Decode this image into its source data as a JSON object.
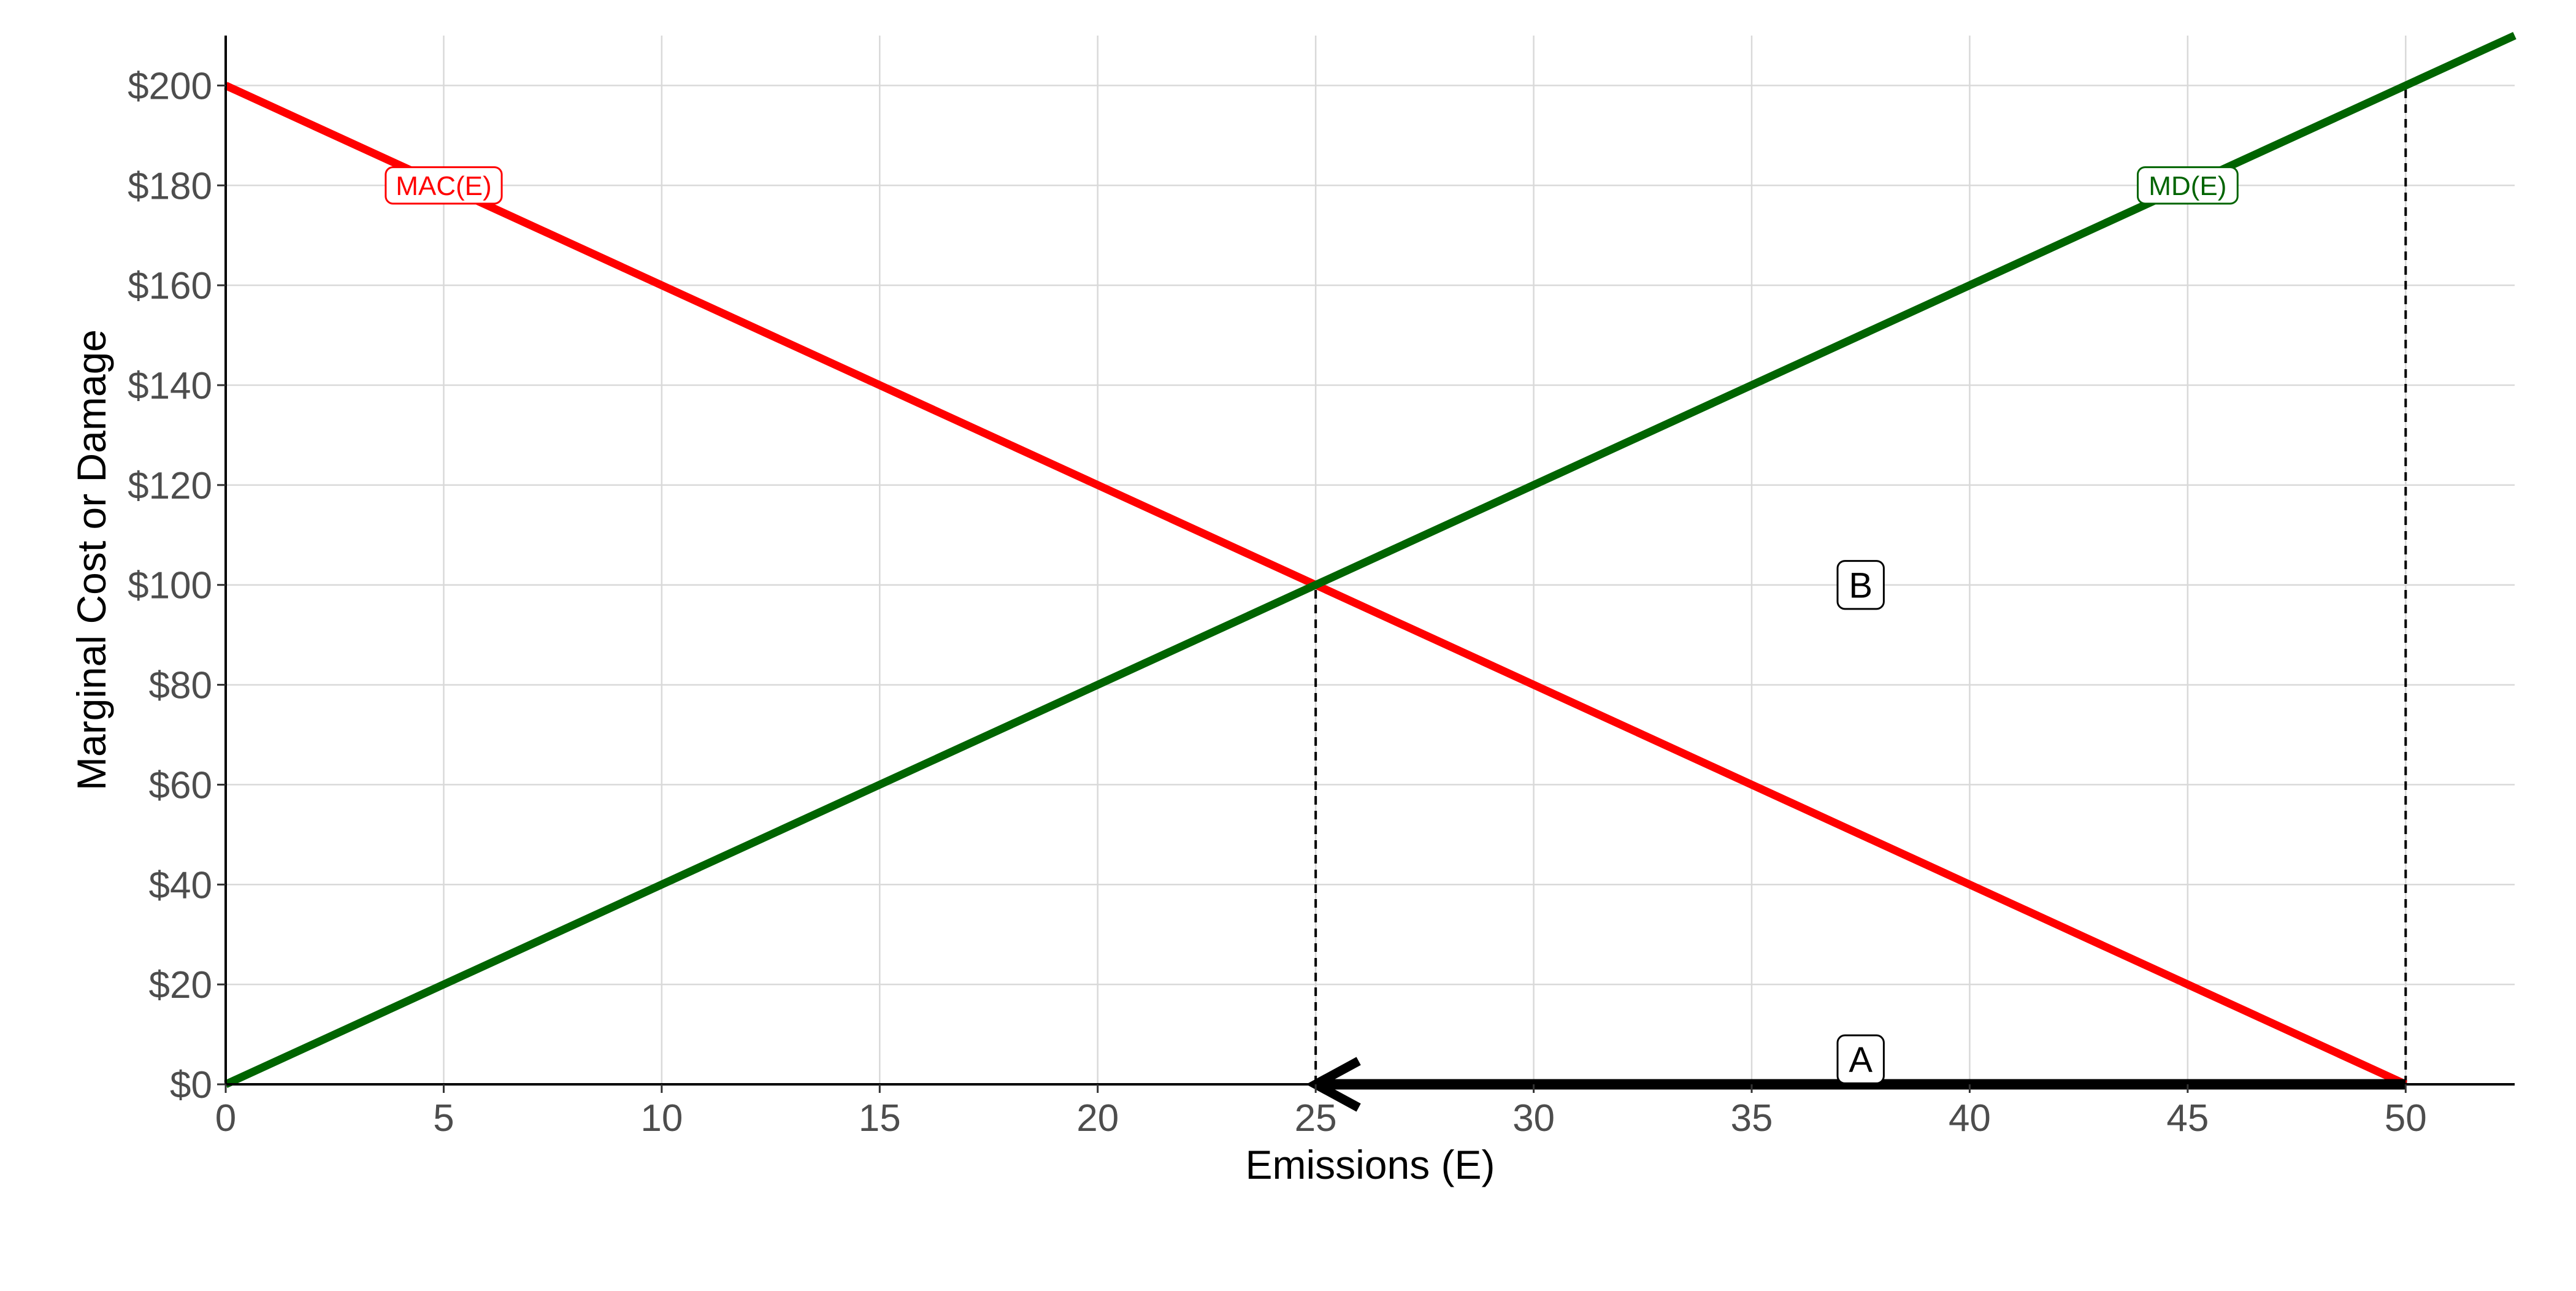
{
  "chart_data": {
    "type": "line",
    "title": "",
    "xlabel": "Emissions (E)",
    "ylabel": "Marginal Cost or Damage",
    "xlim": [
      0,
      52.5
    ],
    "ylim": [
      0,
      210
    ],
    "x_ticks": [
      0,
      5,
      10,
      15,
      20,
      25,
      30,
      35,
      40,
      45,
      50
    ],
    "x_tick_labels": [
      "0",
      "5",
      "10",
      "15",
      "20",
      "25",
      "30",
      "35",
      "40",
      "45",
      "50"
    ],
    "y_ticks": [
      0,
      20,
      40,
      60,
      80,
      100,
      120,
      140,
      160,
      180,
      200
    ],
    "y_tick_labels": [
      "$0",
      "$20",
      "$40",
      "$60",
      "$80",
      "$100",
      "$120",
      "$140",
      "$160",
      "$180",
      "$200"
    ],
    "grid": true,
    "series": [
      {
        "name": "MAC(E)",
        "color": "#ff0000",
        "x": [
          0,
          50
        ],
        "y": [
          200,
          0
        ],
        "label_position": {
          "x": 5,
          "y": 180
        }
      },
      {
        "name": "MD(E)",
        "color": "#006400",
        "x": [
          0,
          52.5
        ],
        "y": [
          0,
          210
        ],
        "label_position": {
          "x": 45,
          "y": 180
        }
      }
    ],
    "reference_lines": [
      {
        "x": 25,
        "y_from": 0,
        "y_to": 100,
        "style": "dashed"
      },
      {
        "x": 50,
        "y_from": 0,
        "y_to": 200,
        "style": "dashed"
      }
    ],
    "arrow": {
      "from": {
        "x": 50,
        "y": 0
      },
      "to": {
        "x": 25,
        "y": 0
      }
    },
    "annotations": [
      {
        "text": "A",
        "x": 37.5,
        "y": 5
      },
      {
        "text": "B",
        "x": 37.5,
        "y": 100
      }
    ]
  }
}
